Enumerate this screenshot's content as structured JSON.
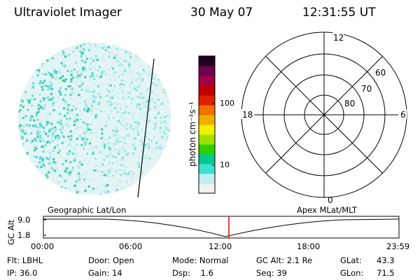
{
  "header": {
    "instrument": "Ultraviolet Imager",
    "date": "30 May 07",
    "time": "12:31:55 UT"
  },
  "colorbar": {
    "unit_label": "photon cm⁻²s⁻¹",
    "tick_labels": [
      "100",
      "10"
    ],
    "colors": [
      "#f2f2f2",
      "#bfeef2",
      "#40e0d0",
      "#00c890",
      "#30d000",
      "#a0e000",
      "#f0f000",
      "#f0b000",
      "#f07000",
      "#e02000",
      "#c00000",
      "#a00040",
      "#700050",
      "#200020"
    ]
  },
  "polar_grid": {
    "mlt_labels": [
      "12",
      "18",
      "6",
      "0"
    ],
    "lat_labels": [
      "60",
      "70",
      "80"
    ]
  },
  "map_labels": {
    "left": "Geographic Lat/Lon",
    "right": "Apex MLat/MLT"
  },
  "altitude_plot": {
    "ylabel": "GC Alt",
    "yticks": [
      "9.0",
      "1.8"
    ],
    "xticks": [
      "00:00",
      "06:00",
      "12:00",
      "18:00",
      "23:59"
    ],
    "current_marker_time": "12:31:55",
    "current_marker_color": "#e00000"
  },
  "status": {
    "flt": "Flt: LBHL",
    "ip": "IP: 36.0",
    "door": "Door: Open",
    "gain": "Gain: 14",
    "mode": "Mode: Normal",
    "dsp": "Dsp:    1.6",
    "gc_alt": "GC Alt: 2.1 Re",
    "seq": "Seq: 39",
    "glat_label": "GLat:",
    "glat_value": "43.3",
    "glon_label": "GLon:",
    "glon_value": "71.5"
  }
}
